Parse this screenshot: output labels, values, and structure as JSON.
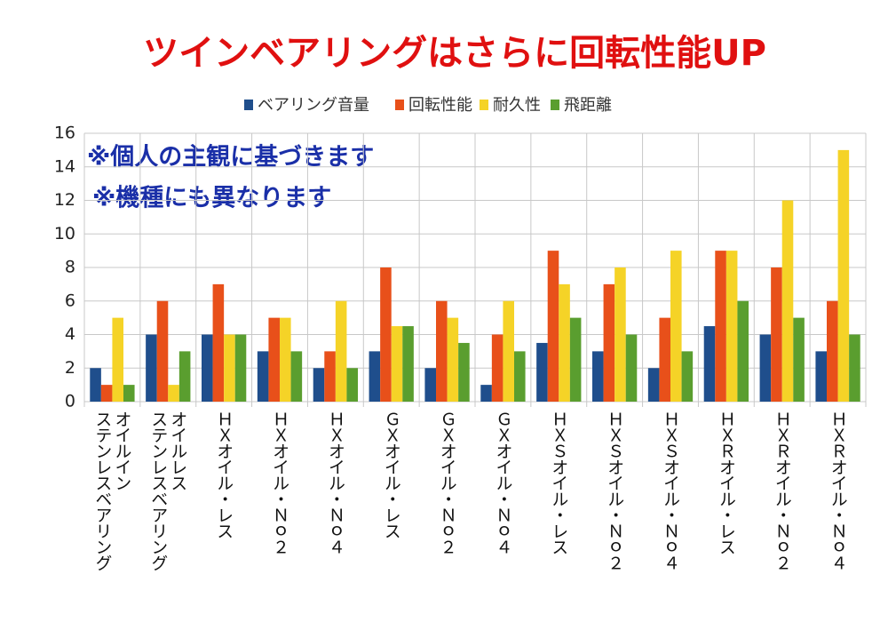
{
  "chart_data": {
    "type": "bar",
    "title": "ツインベアリングはさらに回転性能UP",
    "annotations": [
      "※個人の主観に基づきます",
      "※機種にも異なります"
    ],
    "categories": [
      "オイルイン\nステンレスベアリング",
      "オイルレス\nステンレスベアリング",
      "ＨＸオイル・レス",
      "ＨＸオイル・Ｎｏ２",
      "ＨＸオイル・Ｎｏ４",
      "ＧＸオイル・レス",
      "ＧＸオイル・Ｎｏ２",
      "ＧＸオイル・Ｎｏ４",
      "ＨＸＳオイル・レス",
      "ＨＸＳオイル・Ｎｏ２",
      "ＨＸＳオイル・Ｎｏ４",
      "ＨＸＲオイル・レス",
      "ＨＸＲオイル・Ｎｏ２",
      "ＨＸＲオイル・Ｎｏ４"
    ],
    "series": [
      {
        "name": "ベアリング音量",
        "color": "#1f4e8c",
        "values": [
          2,
          4,
          4,
          3,
          2,
          3,
          2,
          1,
          3.5,
          3,
          2,
          4.5,
          4,
          3
        ]
      },
      {
        "name": "回転性能",
        "color": "#e8501a",
        "values": [
          1,
          6,
          7,
          5,
          3,
          8,
          6,
          4,
          9,
          7,
          5,
          9,
          8,
          6
        ]
      },
      {
        "name": "耐久性",
        "color": "#f5d327",
        "values": [
          5,
          1,
          4,
          5,
          6,
          4.5,
          5,
          6,
          7,
          8,
          9,
          9,
          12,
          15
        ]
      },
      {
        "name": "飛距離",
        "color": "#5a9e2f",
        "values": [
          1,
          3,
          4,
          3,
          2,
          4.5,
          3.5,
          3,
          5,
          4,
          3,
          6,
          5,
          4
        ]
      }
    ],
    "ylim": [
      0,
      16
    ],
    "yticks": [
      0,
      2,
      4,
      6,
      8,
      10,
      12,
      14,
      16
    ],
    "grid": true,
    "legend": "top"
  }
}
